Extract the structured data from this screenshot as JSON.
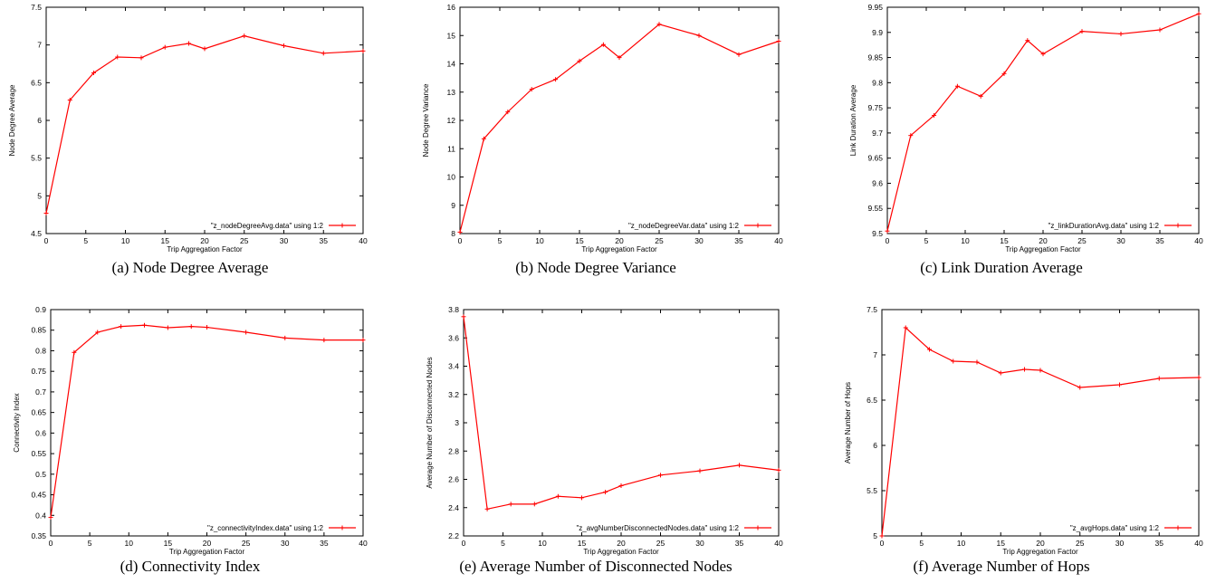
{
  "figure": {
    "series_color": "#ff0000"
  },
  "chart_data": [
    {
      "type": "line",
      "caption": "(a) Node Degree Average",
      "xlabel": "Trip Aggregation Factor",
      "ylabel": "Node Degree Average",
      "xlim": [
        0,
        40
      ],
      "ylim": [
        4.5,
        7.5
      ],
      "xticks": [
        0,
        5,
        10,
        15,
        20,
        25,
        30,
        35,
        40
      ],
      "yticks": [
        4.5,
        5,
        5.5,
        6,
        6.5,
        7,
        7.5
      ],
      "grid": false,
      "legend_position": "bottom-right",
      "series": [
        {
          "name": "\"z_nodeDegreeAvg.data\" using 1:2",
          "x": [
            0,
            3,
            6,
            9,
            12,
            15,
            18,
            20,
            25,
            30,
            35,
            40
          ],
          "y": [
            4.77,
            6.27,
            6.63,
            6.84,
            6.83,
            6.97,
            7.02,
            6.95,
            7.12,
            6.99,
            6.89,
            6.92
          ]
        }
      ]
    },
    {
      "type": "line",
      "caption": "(b) Node Degree Variance",
      "xlabel": "Trip Aggregation Factor",
      "ylabel": "Node Degree Variance",
      "xlim": [
        0,
        40
      ],
      "ylim": [
        8,
        16
      ],
      "xticks": [
        0,
        5,
        10,
        15,
        20,
        25,
        30,
        35,
        40
      ],
      "yticks": [
        8,
        9,
        10,
        11,
        12,
        13,
        14,
        15,
        16
      ],
      "grid": false,
      "legend_position": "bottom-right",
      "series": [
        {
          "name": "\"z_nodeDegreeVar.data\" using 1:2",
          "x": [
            0,
            3,
            6,
            9,
            12,
            15,
            18,
            20,
            25,
            30,
            35,
            40
          ],
          "y": [
            8.05,
            11.35,
            12.3,
            13.1,
            13.45,
            14.1,
            14.68,
            14.22,
            15.4,
            15.0,
            14.33,
            14.8
          ]
        }
      ]
    },
    {
      "type": "line",
      "caption": "(c) Link Duration Average",
      "xlabel": "Trip Aggregation Factor",
      "ylabel": "Link Duration Average",
      "xlim": [
        0,
        40
      ],
      "ylim": [
        9.5,
        9.95
      ],
      "xticks": [
        0,
        5,
        10,
        15,
        20,
        25,
        30,
        35,
        40
      ],
      "yticks": [
        9.5,
        9.55,
        9.6,
        9.65,
        9.7,
        9.75,
        9.8,
        9.85,
        9.9,
        9.95
      ],
      "grid": false,
      "legend_position": "bottom-right",
      "series": [
        {
          "name": "\"z_linkDurationAvg.data\" using 1:2",
          "x": [
            0,
            3,
            6,
            9,
            12,
            15,
            18,
            20,
            25,
            30,
            35,
            40
          ],
          "y": [
            9.505,
            9.695,
            9.735,
            9.793,
            9.773,
            9.818,
            9.884,
            9.857,
            9.902,
            9.897,
            9.905,
            9.937
          ]
        }
      ]
    },
    {
      "type": "line",
      "caption": "(d) Connectivity Index",
      "xlabel": "Trip Aggregation Factor",
      "ylabel": "Connectivity Index",
      "xlim": [
        0,
        40
      ],
      "ylim": [
        0.35,
        0.9
      ],
      "xticks": [
        0,
        5,
        10,
        15,
        20,
        25,
        30,
        35,
        40
      ],
      "yticks": [
        0.35,
        0.4,
        0.45,
        0.5,
        0.55,
        0.6,
        0.65,
        0.7,
        0.75,
        0.8,
        0.85,
        0.9
      ],
      "grid": false,
      "legend_position": "bottom-right",
      "series": [
        {
          "name": "\"z_connectivityIndex.data\" using 1:2",
          "x": [
            0,
            3,
            6,
            9,
            12,
            15,
            18,
            20,
            25,
            30,
            35,
            40
          ],
          "y": [
            0.395,
            0.796,
            0.845,
            0.859,
            0.862,
            0.856,
            0.859,
            0.857,
            0.845,
            0.831,
            0.826,
            0.826
          ]
        }
      ]
    },
    {
      "type": "line",
      "caption": "(e) Average Number of Disconnected Nodes",
      "xlabel": "Trip Aggregation Factor",
      "ylabel": "Average Number of Disconnected Nodes",
      "xlim": [
        0,
        40
      ],
      "ylim": [
        2.2,
        3.8
      ],
      "xticks": [
        0,
        5,
        10,
        15,
        20,
        25,
        30,
        35,
        40
      ],
      "yticks": [
        2.2,
        2.4,
        2.6,
        2.8,
        3,
        3.2,
        3.4,
        3.6,
        3.8
      ],
      "grid": false,
      "legend_position": "bottom-right",
      "series": [
        {
          "name": "\"z_avgNumberDisconnectedNodes.data\" using 1:2",
          "x": [
            0,
            3,
            6,
            9,
            12,
            15,
            18,
            20,
            25,
            30,
            35,
            40
          ],
          "y": [
            3.75,
            2.39,
            2.425,
            2.425,
            2.48,
            2.47,
            2.51,
            2.555,
            2.63,
            2.66,
            2.7,
            2.665
          ]
        }
      ]
    },
    {
      "type": "line",
      "caption": "(f) Average Number of Hops",
      "xlabel": "Trip Aggregation Factor",
      "ylabel": "Average Number of Hops",
      "xlim": [
        0,
        40
      ],
      "ylim": [
        5,
        7.5
      ],
      "xticks": [
        0,
        5,
        10,
        15,
        20,
        25,
        30,
        35,
        40
      ],
      "yticks": [
        5,
        5.5,
        6,
        6.5,
        7,
        7.5
      ],
      "grid": false,
      "legend_position": "bottom-right",
      "series": [
        {
          "name": "\"z_avgHops.data\" using 1:2",
          "x": [
            0,
            3,
            6,
            9,
            12,
            15,
            18,
            20,
            25,
            30,
            35,
            40
          ],
          "y": [
            5.0,
            7.3,
            7.06,
            6.93,
            6.92,
            6.8,
            6.84,
            6.83,
            6.64,
            6.67,
            6.74,
            6.75
          ]
        }
      ]
    }
  ]
}
